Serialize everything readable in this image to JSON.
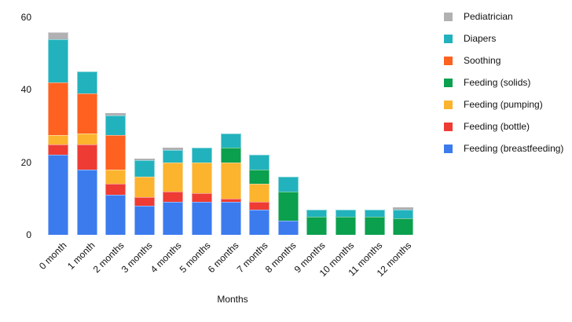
{
  "chart_data": {
    "type": "bar",
    "stacked": true,
    "title": "",
    "xlabel": "Months",
    "ylabel": "",
    "categories": [
      "0 month",
      "1 month",
      "2 months",
      "3 months",
      "4 months",
      "5 months",
      "6 months",
      "7 months",
      "8 months",
      "9 months",
      "10 months",
      "11 months",
      "12 months"
    ],
    "series": [
      {
        "name": "Feeding (breastfeeding)",
        "color": "#3C7BEE",
        "values": [
          22,
          18,
          11,
          8,
          9,
          9,
          9,
          7,
          4,
          0,
          0,
          0,
          0
        ]
      },
      {
        "name": "Feeding (bottle)",
        "color": "#EE3B33",
        "values": [
          3,
          7,
          3,
          2.5,
          3,
          2.5,
          1,
          2,
          0,
          0,
          0,
          0,
          0
        ]
      },
      {
        "name": "Feeding (pumping)",
        "color": "#FCB32E",
        "values": [
          2.5,
          3,
          4,
          5.5,
          8,
          8.5,
          10,
          5,
          0,
          0,
          0,
          0,
          0
        ]
      },
      {
        "name": "Feeding (solids)",
        "color": "#0AA04E",
        "values": [
          0,
          0,
          0,
          0,
          0,
          0,
          4,
          4,
          8,
          5,
          5,
          5,
          4.5
        ]
      },
      {
        "name": "Soothing",
        "color": "#FE6120",
        "values": [
          14.5,
          11,
          9.5,
          0,
          0,
          0,
          0,
          0,
          0,
          0,
          0,
          0,
          0
        ]
      },
      {
        "name": "Diapers",
        "color": "#22B2BD",
        "values": [
          12,
          6,
          5.5,
          4.5,
          3.5,
          4,
          4,
          4,
          4,
          2,
          2,
          2,
          2.5
        ]
      },
      {
        "name": "Pediatrician",
        "color": "#B1B1B3",
        "values": [
          2,
          0,
          0.5,
          0.5,
          0.5,
          0,
          0,
          0,
          0,
          0,
          0,
          0,
          0.5
        ]
      }
    ],
    "legend": {
      "position": "right",
      "order_top_to_bottom": [
        "Pediatrician",
        "Diapers",
        "Soothing",
        "Feeding (solids)",
        "Feeding (pumping)",
        "Feeding (bottle)",
        "Feeding (breastfeeding)"
      ]
    },
    "y_ticks": [
      0,
      20,
      40,
      60
    ],
    "ylim": [
      0,
      60
    ],
    "grid": false
  }
}
